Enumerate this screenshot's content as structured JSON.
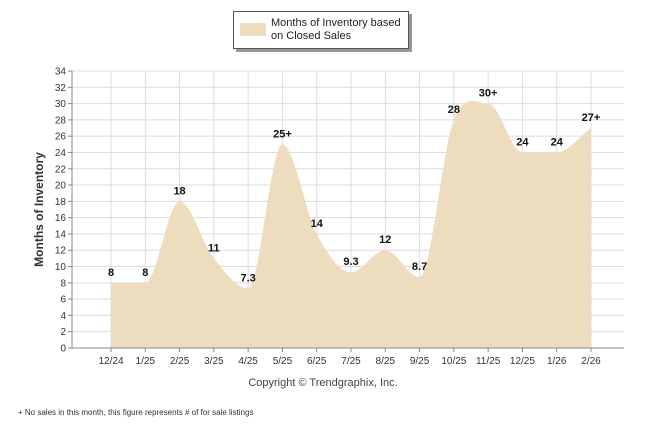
{
  "chart_data": {
    "type": "area",
    "title": "",
    "legend": {
      "label": "Months of Inventory based on Closed Sales",
      "position": "top-center"
    },
    "ylabel": "Months of Inventory",
    "xlabel": "",
    "ylim": [
      0,
      34
    ],
    "yticks": [
      0,
      2,
      4,
      6,
      8,
      10,
      12,
      14,
      16,
      18,
      20,
      22,
      24,
      26,
      28,
      30,
      32,
      34
    ],
    "grid": true,
    "categories": [
      "12/24",
      "1/25",
      "2/25",
      "3/25",
      "4/25",
      "5/25",
      "6/25",
      "7/25",
      "8/25",
      "9/25",
      "10/25",
      "11/25",
      "12/25",
      "1/26",
      "2/26"
    ],
    "series": [
      {
        "name": "Months of Inventory based on Closed Sales",
        "values": [
          8,
          8,
          18,
          11,
          7.3,
          25,
          14,
          9.3,
          12,
          8.7,
          28,
          30,
          24,
          24,
          27
        ],
        "labels": [
          "8",
          "8",
          "18",
          "11",
          "7.3",
          "25+",
          "14",
          "9.3",
          "12",
          "8.7",
          "28",
          "30+",
          "24",
          "24",
          "27+"
        ]
      }
    ]
  },
  "colors": {
    "fill": "#eddcbe",
    "grid": "#dcdcdc",
    "axis": "#888888"
  },
  "copyright": "Copyright © Trendgraphix, Inc.",
  "footnote": "+ No sales in this month, this figure represents # of for sale listings"
}
